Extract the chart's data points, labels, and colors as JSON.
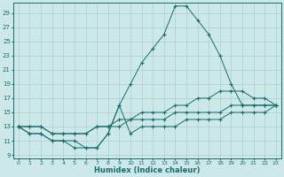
{
  "xlabel": "Humidex (Indice chaleur)",
  "bg_color": "#cce8e8",
  "line_color": "#1a6b6b",
  "grid_color": "#aacfcf",
  "xlim": [
    -0.5,
    23.5
  ],
  "ylim": [
    8.5,
    30.5
  ],
  "yticks": [
    9,
    11,
    13,
    15,
    17,
    19,
    21,
    23,
    25,
    27,
    29
  ],
  "xticks": [
    0,
    1,
    2,
    3,
    4,
    5,
    6,
    7,
    8,
    9,
    10,
    11,
    12,
    13,
    14,
    15,
    16,
    17,
    18,
    19,
    20,
    21,
    22,
    23
  ],
  "series": [
    {
      "x": [
        0,
        1,
        2,
        3,
        4,
        5,
        6,
        7,
        8,
        9,
        10,
        11,
        12,
        13,
        14,
        15,
        16,
        17,
        18,
        19,
        20,
        21,
        22,
        23
      ],
      "y": [
        13,
        12,
        12,
        11,
        11,
        11,
        10,
        10,
        12,
        16,
        19,
        22,
        24,
        26,
        30,
        30,
        28,
        26,
        23,
        19,
        16,
        16,
        16,
        16
      ]
    },
    {
      "x": [
        0,
        1,
        2,
        3,
        4,
        5,
        6,
        7,
        8,
        9,
        10,
        11,
        12,
        13,
        14,
        15,
        16,
        17,
        18,
        19,
        20,
        21,
        22,
        23
      ],
      "y": [
        13,
        13,
        13,
        12,
        12,
        12,
        12,
        13,
        13,
        14,
        14,
        15,
        15,
        15,
        16,
        16,
        17,
        17,
        18,
        18,
        18,
        17,
        17,
        16
      ]
    },
    {
      "x": [
        0,
        1,
        2,
        3,
        4,
        5,
        6,
        7,
        8,
        9,
        10,
        11,
        12,
        13,
        14,
        15,
        16,
        17,
        18,
        19,
        20,
        21,
        22,
        23
      ],
      "y": [
        13,
        13,
        13,
        12,
        12,
        12,
        12,
        13,
        13,
        13,
        14,
        14,
        14,
        14,
        15,
        15,
        15,
        15,
        15,
        16,
        16,
        16,
        16,
        16
      ]
    },
    {
      "x": [
        0,
        1,
        2,
        3,
        4,
        5,
        6,
        7,
        8,
        9,
        10,
        11,
        12,
        13,
        14,
        15,
        16,
        17,
        18,
        19,
        20,
        21,
        22,
        23
      ],
      "y": [
        13,
        12,
        12,
        11,
        11,
        10,
        10,
        10,
        12,
        16,
        12,
        13,
        13,
        13,
        13,
        14,
        14,
        14,
        14,
        15,
        15,
        15,
        15,
        16
      ]
    }
  ]
}
